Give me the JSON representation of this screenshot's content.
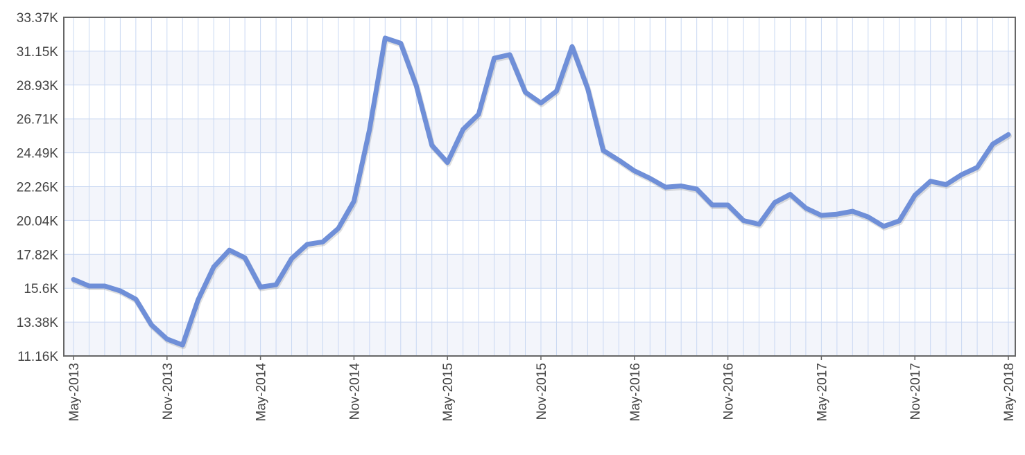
{
  "chart_data": {
    "type": "line",
    "title": "",
    "xlabel": "",
    "ylabel": "",
    "x_start": "May-2013",
    "x_end": "May-2018",
    "x_tick_labels": [
      "May-2013",
      "Nov-2013",
      "May-2014",
      "Nov-2014",
      "May-2015",
      "Nov-2015",
      "May-2016",
      "Nov-2016",
      "May-2017",
      "Nov-2017",
      "May-2018"
    ],
    "y_tick_labels": [
      "11.16K",
      "13.38K",
      "15.6K",
      "17.82K",
      "20.04K",
      "22.26K",
      "24.49K",
      "26.71K",
      "28.93K",
      "31.15K",
      "33.37K"
    ],
    "ylim": [
      11160,
      33370
    ],
    "grid": true,
    "legend": "none",
    "colors": {
      "line": "#6f8fd8",
      "grid": "#c9d8f2",
      "band": "#f3f5fb",
      "axis": "#555555"
    },
    "series": [
      {
        "x": [
          "May-2013",
          "Jun-2013",
          "Jul-2013",
          "Aug-2013",
          "Sep-2013",
          "Oct-2013",
          "Nov-2013",
          "Dec-2013",
          "Jan-2014",
          "Feb-2014",
          "Mar-2014",
          "Apr-2014",
          "May-2014",
          "Jun-2014",
          "Jul-2014",
          "Aug-2014",
          "Sep-2014",
          "Oct-2014",
          "Nov-2014",
          "Dec-2014",
          "Jan-2015",
          "Feb-2015",
          "Mar-2015",
          "Apr-2015",
          "May-2015",
          "Jun-2015",
          "Jul-2015",
          "Aug-2015",
          "Sep-2015",
          "Oct-2015",
          "Nov-2015",
          "Dec-2015",
          "Jan-2016",
          "Feb-2016",
          "Mar-2016",
          "Apr-2016",
          "May-2016",
          "Jun-2016",
          "Jul-2016",
          "Aug-2016",
          "Sep-2016",
          "Oct-2016",
          "Nov-2016",
          "Dec-2016",
          "Jan-2017",
          "Feb-2017",
          "Mar-2017",
          "Apr-2017",
          "May-2017",
          "Jun-2017",
          "Jul-2017",
          "Aug-2017",
          "Sep-2017",
          "Oct-2017",
          "Nov-2017",
          "Dec-2017",
          "Jan-2018",
          "Feb-2018",
          "Mar-2018",
          "Apr-2018",
          "May-2018"
        ],
        "values": [
          16180,
          15750,
          15750,
          15430,
          14880,
          13200,
          12270,
          11880,
          14850,
          17000,
          18100,
          17600,
          15680,
          15830,
          17550,
          18480,
          18640,
          19530,
          21310,
          26020,
          32010,
          31670,
          28880,
          24980,
          23850,
          26020,
          27010,
          30690,
          30920,
          28460,
          27750,
          28530,
          31450,
          28700,
          24640,
          24000,
          23300,
          22810,
          22230,
          22310,
          22110,
          21060,
          21060,
          20040,
          19800,
          21220,
          21760,
          20860,
          20380,
          20460,
          20650,
          20280,
          19660,
          20020,
          21700,
          22620,
          22400,
          23050,
          23530,
          25060,
          25680
        ]
      }
    ]
  }
}
